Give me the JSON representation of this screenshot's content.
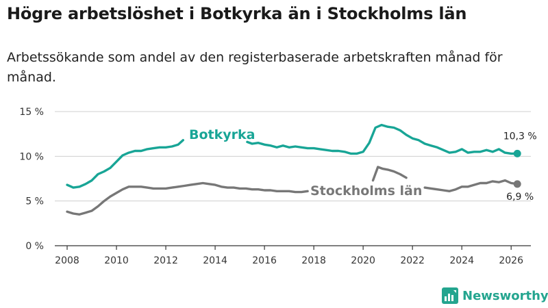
{
  "title": "Högre arbetslöshet i Botkyrka än i Stockholms län",
  "subtitle": "Arbetssökande som andel av den registerbaserade arbetskraften månad för månad.",
  "brand": "Newsworthy",
  "colors": {
    "botkyrka": "#18a596",
    "stockholm": "#777777",
    "grid": "#cfcfcf",
    "axis": "#333333"
  },
  "chart_data": {
    "type": "line",
    "ylim": [
      0,
      15
    ],
    "xlim": [
      2007.5,
      2026.8
    ],
    "y_ticks": [
      0,
      5,
      10,
      15
    ],
    "y_tick_labels": [
      "0 %",
      "5 %",
      "10 %",
      "15 %"
    ],
    "x_ticks": [
      2008,
      2010,
      2012,
      2014,
      2016,
      2018,
      2020,
      2022,
      2024,
      2026
    ],
    "x_tick_labels": [
      "2008",
      "2010",
      "2012",
      "2014",
      "2016",
      "2018",
      "2020",
      "2022",
      "2024",
      "2026"
    ],
    "series": [
      {
        "name": "Botkyrka",
        "color": "#18a596",
        "label_text": "Botkyrka",
        "end_label": "10,3 %",
        "points": [
          [
            2008.0,
            6.8
          ],
          [
            2008.25,
            6.5
          ],
          [
            2008.5,
            6.6
          ],
          [
            2008.75,
            6.9
          ],
          [
            2009.0,
            7.3
          ],
          [
            2009.25,
            8.0
          ],
          [
            2009.5,
            8.3
          ],
          [
            2009.75,
            8.7
          ],
          [
            2010.0,
            9.4
          ],
          [
            2010.25,
            10.1
          ],
          [
            2010.5,
            10.4
          ],
          [
            2010.75,
            10.6
          ],
          [
            2011.0,
            10.6
          ],
          [
            2011.25,
            10.8
          ],
          [
            2011.5,
            10.9
          ],
          [
            2011.75,
            11.0
          ],
          [
            2012.0,
            11.0
          ],
          [
            2012.25,
            11.1
          ],
          [
            2012.5,
            11.3
          ],
          [
            2012.7,
            11.8
          ]
        ],
        "points_b": [
          [
            2015.3,
            11.6
          ],
          [
            2015.5,
            11.4
          ],
          [
            2015.75,
            11.5
          ],
          [
            2016.0,
            11.3
          ],
          [
            2016.25,
            11.2
          ],
          [
            2016.5,
            11.0
          ],
          [
            2016.75,
            11.2
          ],
          [
            2017.0,
            11.0
          ],
          [
            2017.25,
            11.1
          ],
          [
            2017.5,
            11.0
          ],
          [
            2017.75,
            10.9
          ],
          [
            2018.0,
            10.9
          ],
          [
            2018.25,
            10.8
          ],
          [
            2018.5,
            10.7
          ],
          [
            2018.75,
            10.6
          ],
          [
            2019.0,
            10.6
          ],
          [
            2019.25,
            10.5
          ],
          [
            2019.5,
            10.3
          ],
          [
            2019.75,
            10.3
          ],
          [
            2020.0,
            10.5
          ],
          [
            2020.25,
            11.5
          ],
          [
            2020.5,
            13.2
          ],
          [
            2020.75,
            13.5
          ],
          [
            2021.0,
            13.3
          ],
          [
            2021.25,
            13.2
          ],
          [
            2021.5,
            12.9
          ],
          [
            2021.75,
            12.4
          ],
          [
            2022.0,
            12.0
          ],
          [
            2022.25,
            11.8
          ],
          [
            2022.5,
            11.4
          ],
          [
            2022.75,
            11.2
          ],
          [
            2023.0,
            11.0
          ],
          [
            2023.25,
            10.7
          ],
          [
            2023.5,
            10.4
          ],
          [
            2023.75,
            10.5
          ],
          [
            2024.0,
            10.8
          ],
          [
            2024.25,
            10.4
          ],
          [
            2024.5,
            10.5
          ],
          [
            2024.75,
            10.5
          ],
          [
            2025.0,
            10.7
          ],
          [
            2025.25,
            10.5
          ],
          [
            2025.5,
            10.8
          ],
          [
            2025.75,
            10.4
          ],
          [
            2026.0,
            10.3
          ],
          [
            2026.25,
            10.3
          ]
        ]
      },
      {
        "name": "Stockholms län",
        "color": "#777777",
        "label_text": "Stockholms län",
        "end_label": "6,9 %",
        "points": [
          [
            2008.0,
            3.8
          ],
          [
            2008.25,
            3.6
          ],
          [
            2008.5,
            3.5
          ],
          [
            2008.75,
            3.7
          ],
          [
            2009.0,
            3.9
          ],
          [
            2009.25,
            4.4
          ],
          [
            2009.5,
            5.0
          ],
          [
            2009.75,
            5.5
          ],
          [
            2010.0,
            5.9
          ],
          [
            2010.25,
            6.3
          ],
          [
            2010.5,
            6.6
          ],
          [
            2010.75,
            6.6
          ],
          [
            2011.0,
            6.6
          ],
          [
            2011.25,
            6.5
          ],
          [
            2011.5,
            6.4
          ],
          [
            2011.75,
            6.4
          ],
          [
            2012.0,
            6.4
          ],
          [
            2012.25,
            6.5
          ],
          [
            2012.5,
            6.6
          ],
          [
            2012.75,
            6.7
          ],
          [
            2013.0,
            6.8
          ],
          [
            2013.25,
            6.9
          ],
          [
            2013.5,
            7.0
          ],
          [
            2013.75,
            6.9
          ],
          [
            2014.0,
            6.8
          ],
          [
            2014.25,
            6.6
          ],
          [
            2014.5,
            6.5
          ],
          [
            2014.75,
            6.5
          ],
          [
            2015.0,
            6.4
          ],
          [
            2015.25,
            6.4
          ],
          [
            2015.5,
            6.3
          ],
          [
            2015.75,
            6.3
          ],
          [
            2016.0,
            6.2
          ],
          [
            2016.25,
            6.2
          ],
          [
            2016.5,
            6.1
          ],
          [
            2016.75,
            6.1
          ],
          [
            2017.0,
            6.1
          ],
          [
            2017.25,
            6.0
          ],
          [
            2017.5,
            6.0
          ],
          [
            2017.75,
            6.1
          ]
        ],
        "points_b": [
          [
            2020.4,
            7.3
          ],
          [
            2020.6,
            8.8
          ],
          [
            2020.8,
            8.6
          ],
          [
            2021.0,
            8.5
          ],
          [
            2021.25,
            8.3
          ],
          [
            2021.5,
            8.0
          ],
          [
            2021.75,
            7.6
          ]
        ],
        "points_c": [
          [
            2022.5,
            6.5
          ],
          [
            2022.75,
            6.4
          ],
          [
            2023.0,
            6.3
          ],
          [
            2023.25,
            6.2
          ],
          [
            2023.5,
            6.1
          ],
          [
            2023.75,
            6.3
          ],
          [
            2024.0,
            6.6
          ],
          [
            2024.25,
            6.6
          ],
          [
            2024.5,
            6.8
          ],
          [
            2024.75,
            7.0
          ],
          [
            2025.0,
            7.0
          ],
          [
            2025.25,
            7.2
          ],
          [
            2025.5,
            7.1
          ],
          [
            2025.75,
            7.3
          ],
          [
            2026.0,
            7.0
          ],
          [
            2026.25,
            6.9
          ]
        ]
      }
    ]
  }
}
